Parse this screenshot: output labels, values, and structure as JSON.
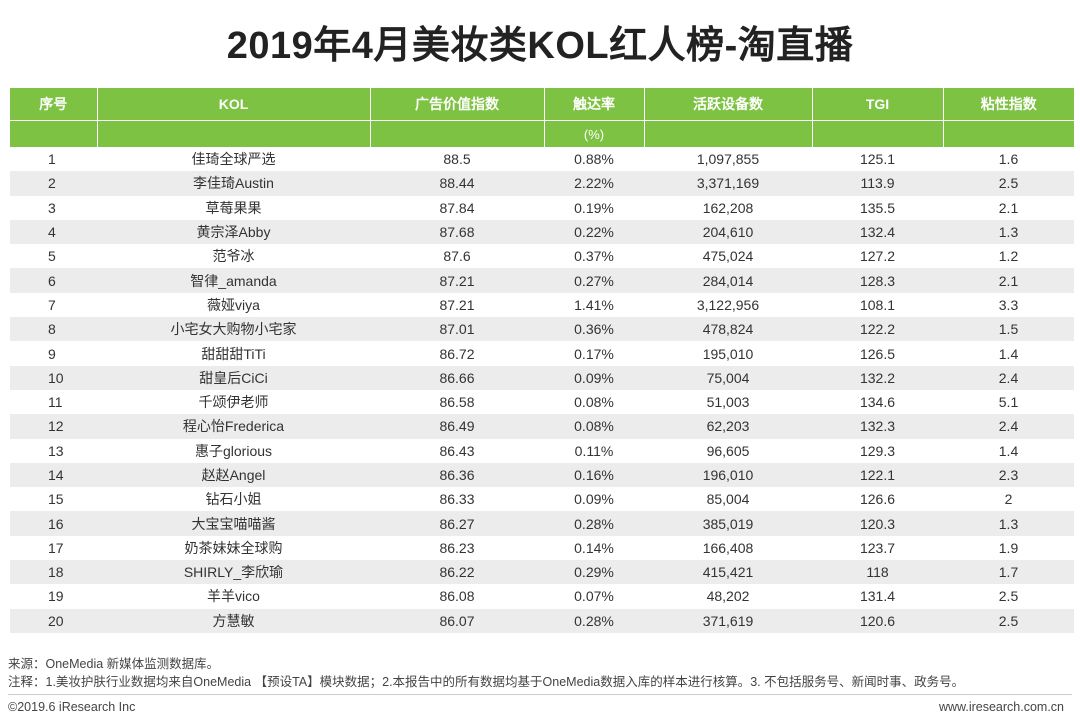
{
  "title": "2019年4月美妆类KOL红人榜-淘直播",
  "columns": [
    "序号",
    "KOL",
    "广告价值指数",
    "触达率",
    "活跃设备数",
    "TGI",
    "粘性指数"
  ],
  "unit_row": [
    "",
    "",
    "",
    "(%)",
    "",
    "",
    ""
  ],
  "rows": [
    [
      "1",
      "佳琦全球严选",
      "88.5",
      "0.88%",
      "1,097,855",
      "125.1",
      "1.6"
    ],
    [
      "2",
      "李佳琦Austin",
      "88.44",
      "2.22%",
      "3,371,169",
      "113.9",
      "2.5"
    ],
    [
      "3",
      "草莓果果",
      "87.84",
      "0.19%",
      "162,208",
      "135.5",
      "2.1"
    ],
    [
      "4",
      "黄宗泽Abby",
      "87.68",
      "0.22%",
      "204,610",
      "132.4",
      "1.3"
    ],
    [
      "5",
      "范爷冰",
      "87.6",
      "0.37%",
      "475,024",
      "127.2",
      "1.2"
    ],
    [
      "6",
      "智律_amanda",
      "87.21",
      "0.27%",
      "284,014",
      "128.3",
      "2.1"
    ],
    [
      "7",
      "薇娅viya",
      "87.21",
      "1.41%",
      "3,122,956",
      "108.1",
      "3.3"
    ],
    [
      "8",
      "小宅女大购物小宅家",
      "87.01",
      "0.36%",
      "478,824",
      "122.2",
      "1.5"
    ],
    [
      "9",
      "甜甜甜TiTi",
      "86.72",
      "0.17%",
      "195,010",
      "126.5",
      "1.4"
    ],
    [
      "10",
      "甜皇后CiCi",
      "86.66",
      "0.09%",
      "75,004",
      "132.2",
      "2.4"
    ],
    [
      "11",
      "千颂伊老师",
      "86.58",
      "0.08%",
      "51,003",
      "134.6",
      "5.1"
    ],
    [
      "12",
      "程心怡Frederica",
      "86.49",
      "0.08%",
      "62,203",
      "132.3",
      "2.4"
    ],
    [
      "13",
      "惠子glorious",
      "86.43",
      "0.11%",
      "96,605",
      "129.3",
      "1.4"
    ],
    [
      "14",
      "赵赵Angel",
      "86.36",
      "0.16%",
      "196,010",
      "122.1",
      "2.3"
    ],
    [
      "15",
      "钻石小姐",
      "86.33",
      "0.09%",
      "85,004",
      "126.6",
      "2"
    ],
    [
      "16",
      "大宝宝喵喵酱",
      "86.27",
      "0.28%",
      "385,019",
      "120.3",
      "1.3"
    ],
    [
      "17",
      "奶茶妹妹全球购",
      "86.23",
      "0.14%",
      "166,408",
      "123.7",
      "1.9"
    ],
    [
      "18",
      "SHIRLY_李欣瑜",
      "86.22",
      "0.29%",
      "415,421",
      "118",
      "1.7"
    ],
    [
      "19",
      "羊羊vico",
      "86.08",
      "0.07%",
      "48,202",
      "131.4",
      "2.5"
    ],
    [
      "20",
      "方慧敏",
      "86.07",
      "0.28%",
      "371,619",
      "120.6",
      "2.5"
    ]
  ],
  "source": "来源：OneMedia 新媒体监测数据库。",
  "note": "注释：1.美妆护肤行业数据均来自OneMedia 【预设TA】模块数据；2.本报告中的所有数据均基于OneMedia数据入库的样本进行核算。3. 不包括服务号、新闻时事、政务号。",
  "copyright": "©2019.6 iResearch Inc",
  "website": "www.iresearch.com.cn"
}
